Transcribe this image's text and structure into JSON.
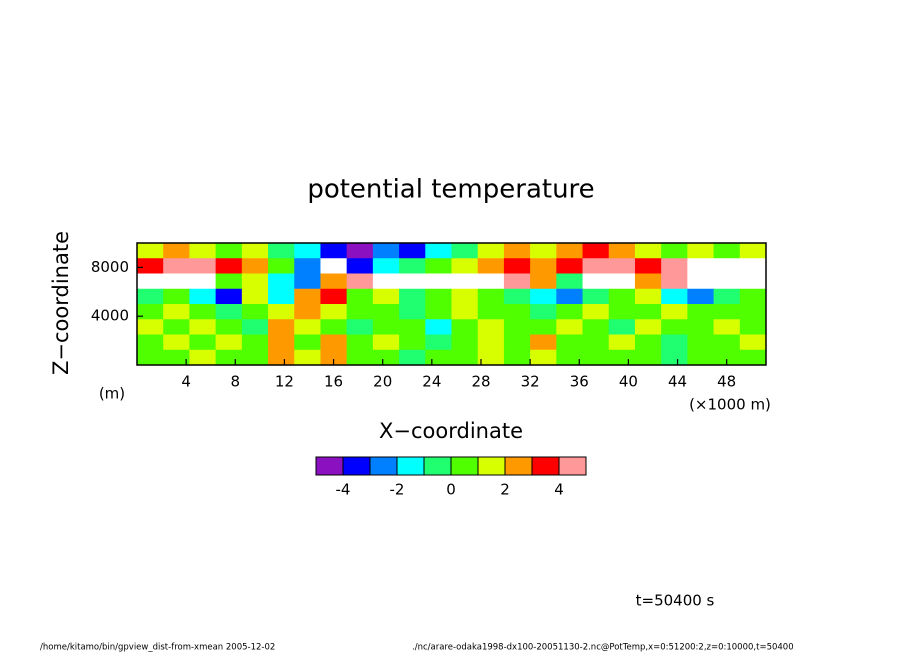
{
  "chart_data": {
    "type": "contour",
    "title": "potential temperature",
    "x_label": "X−coordinate",
    "x_unit": "(×1000 m)",
    "y_label": "Z−coordinate",
    "y_unit": "(m)",
    "time_label": "t=50400 s",
    "footer_left": "/home/kitamo/bin/gpview_dist-from-xmean   2005-12-02",
    "footer_right": "./nc/arare-odaka1998-dx100-20051130-2.nc@PotTemp,x=0:51200:2,z=0:10000,t=50400",
    "xlim": [
      0,
      51.2
    ],
    "ylim": [
      0,
      10000
    ],
    "xticks": [
      4,
      8,
      12,
      16,
      20,
      24,
      28,
      32,
      36,
      40,
      44,
      48
    ],
    "yticks": [
      4000,
      8000
    ],
    "levels": [
      -5,
      -4,
      -3,
      -2,
      -1,
      0,
      1,
      2,
      3,
      4,
      5
    ],
    "colors": [
      "#8a10c0",
      "#0000ff",
      "#0080ff",
      "#00ffff",
      "#20ff70",
      "#50ff00",
      "#d8ff00",
      "#ff9900",
      "#ff0000",
      "#ff9999"
    ],
    "colorbar_ticks": [
      -4,
      -2,
      0,
      2,
      4
    ],
    "values": [
      [
        1,
        2,
        1,
        0,
        1,
        -1,
        -2,
        -4,
        -5,
        -3,
        -4,
        -2,
        -1,
        1,
        2,
        1,
        2,
        3,
        2,
        1,
        0,
        1,
        0,
        1
      ],
      [
        3,
        4,
        4,
        3,
        2,
        0,
        -3,
        -6,
        -4,
        -2,
        -1,
        0,
        1,
        2,
        3,
        2,
        3,
        4,
        4,
        3,
        4,
        5,
        6,
        6
      ],
      [
        -6,
        -6,
        -6,
        0,
        1,
        -2,
        -3,
        2,
        4,
        6,
        6,
        6,
        6,
        5,
        4,
        2,
        -1,
        -6,
        -6,
        2,
        4,
        6,
        6,
        6
      ],
      [
        -1,
        0,
        -2,
        -4,
        1,
        -2,
        2,
        3,
        0,
        1,
        -1,
        0,
        1,
        0,
        -1,
        -2,
        -3,
        -1,
        0,
        1,
        -2,
        -3,
        -1,
        0
      ],
      [
        0,
        1,
        0,
        -1,
        0,
        1,
        2,
        1,
        0,
        0,
        -1,
        0,
        1,
        0,
        0,
        -1,
        0,
        1,
        0,
        0,
        1,
        0,
        0,
        0
      ],
      [
        1,
        0,
        1,
        0,
        -1,
        2,
        1,
        0,
        -1,
        0,
        0,
        -2,
        0,
        1,
        0,
        0,
        1,
        0,
        -1,
        1,
        0,
        0,
        1,
        0
      ],
      [
        0,
        1,
        0,
        1,
        0,
        2,
        0,
        2,
        0,
        1,
        0,
        -1,
        0,
        1,
        0,
        2,
        0,
        0,
        1,
        0,
        -1,
        0,
        0,
        1
      ],
      [
        0,
        0,
        1,
        0,
        0,
        2,
        1,
        2,
        0,
        0,
        -1,
        0,
        0,
        1,
        0,
        1,
        0,
        0,
        0,
        0,
        -1,
        0,
        0,
        0
      ]
    ]
  }
}
